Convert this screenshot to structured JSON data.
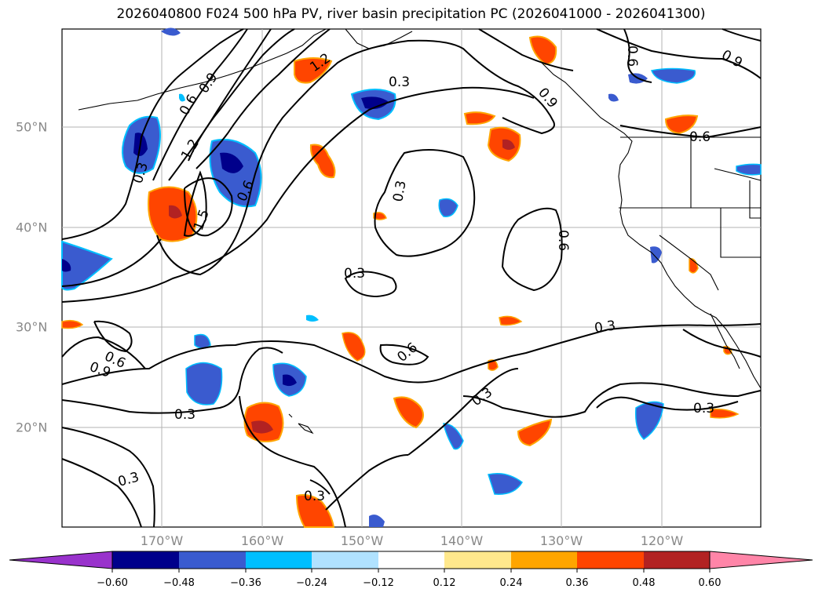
{
  "title": "2026040800 F024 500 hPa PV, river basin precipitation PC (2026041000 - 2026041300)",
  "map": {
    "lon_labels": [
      "170°W",
      "160°W",
      "150°W",
      "140°W",
      "130°W",
      "120°W"
    ],
    "lat_labels": [
      "50°N",
      "40°N",
      "30°N",
      "20°N"
    ],
    "contour_labels": [
      "0.3",
      "0.6",
      "0.9",
      "1.2",
      "1.5"
    ]
  },
  "colorbar": {
    "ticks": [
      "−0.60",
      "−0.48",
      "−0.36",
      "−0.24",
      "−0.12",
      "0.12",
      "0.24",
      "0.36",
      "0.48",
      "0.60"
    ],
    "colors": [
      "#9932cc",
      "#00008b",
      "#3a5bcf",
      "#00bfff",
      "#b0e2ff",
      "#ffffff",
      "#ffe88c",
      "#ffa500",
      "#ff4500",
      "#b22222",
      "#ff85a8"
    ]
  }
}
